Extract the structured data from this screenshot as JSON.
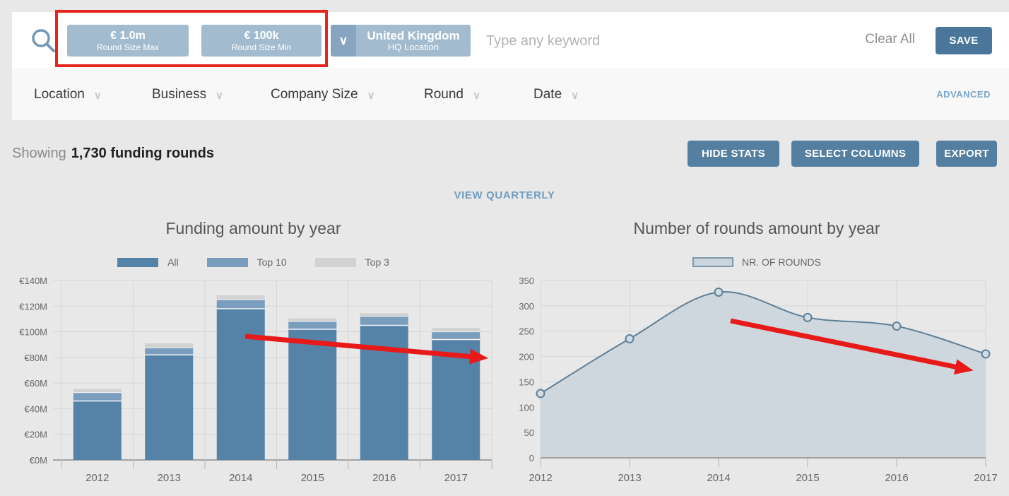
{
  "icons": {
    "chevron_down": "∨"
  },
  "search_bar": {
    "filters": [
      {
        "value": "€ 1.0m",
        "label": "Round Size Max"
      },
      {
        "value": "€ 100k",
        "label": "Round Size Min"
      }
    ],
    "location_filter": {
      "value": "United Kingdom",
      "label": "HQ Location"
    },
    "keyword_placeholder": "Type any keyword",
    "clear_all_label": "Clear All",
    "save_label": "SAVE"
  },
  "filter_tabs": {
    "items": [
      "Location",
      "Business",
      "Company Size",
      "Round",
      "Date"
    ],
    "advanced_label": "ADVANCED"
  },
  "results_header": {
    "showing_label": "Showing",
    "count_text": "1,730 funding rounds",
    "hide_stats_label": "HIDE STATS",
    "select_columns_label": "SELECT COLUMNS",
    "export_label": "EXPORT"
  },
  "view_quarterly_label": "VIEW QUARTERLY",
  "colors": {
    "action_button": "#557fa0",
    "save_button": "#4b769b",
    "chip_blue": "#a3bbce",
    "chip_accent_blue": "#87a5c0",
    "view_quarterly_blue": "#6f9dc1",
    "advanced_blue": "#7aa6c9",
    "annotation_red": "#e81919",
    "highlight_red": "#e6251f"
  },
  "chart_data": [
    {
      "type": "bar",
      "title": "Funding amount by year",
      "categories": [
        "2012",
        "2013",
        "2014",
        "2015",
        "2016",
        "2017"
      ],
      "series": [
        {
          "name": "All",
          "color": "#5583a8",
          "cumulative_tops_m": [
            46,
            82,
            118,
            102,
            105,
            94
          ]
        },
        {
          "name": "Top 10",
          "color": "#7a9dbd",
          "cumulative_tops_m": [
            52.5,
            87.5,
            125,
            108,
            112,
            100
          ]
        },
        {
          "name": "Top 3",
          "color": "#d2d2d2",
          "cumulative_tops_m": [
            55.5,
            91,
            128.5,
            110.5,
            114.5,
            103
          ]
        }
      ],
      "ylim": [
        0,
        140
      ],
      "ytick_step": 20,
      "ytick_format": "€{v}M",
      "grid": true,
      "legend_position": "top",
      "annotations": [
        {
          "type": "arrow",
          "color": "#e81919",
          "note": "downward funding trend 2014-2017"
        }
      ]
    },
    {
      "type": "area",
      "title": "Number of rounds amount by year",
      "legend": "NR. OF ROUNDS",
      "x": [
        "2012",
        "2013",
        "2014",
        "2015",
        "2016",
        "2017"
      ],
      "values": [
        127,
        235,
        327,
        277,
        260,
        205
      ],
      "area_color": "#ccd5dd",
      "line_color": "#5e8099",
      "ylim": [
        0,
        350
      ],
      "ytick_step": 50,
      "ytick_format": "{v}",
      "grid": true,
      "legend_position": "top",
      "annotations": [
        {
          "type": "arrow",
          "color": "#e81919",
          "note": "downward rounds trend 2014-2017"
        }
      ]
    }
  ]
}
